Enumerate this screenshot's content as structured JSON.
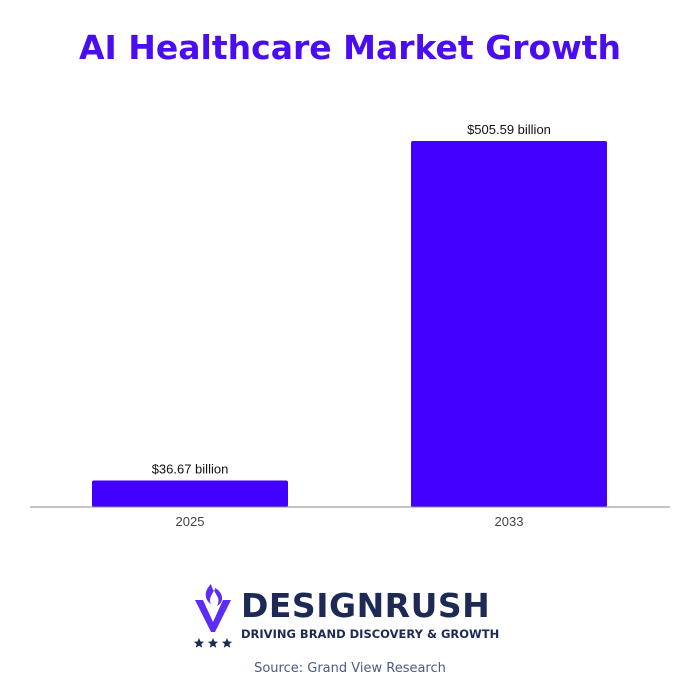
{
  "chart_data": {
    "type": "bar",
    "title": "AI Healthcare Market Growth",
    "categories": [
      "2025",
      "2033"
    ],
    "values": [
      36.67,
      505.59
    ],
    "data_labels": [
      "$36.67 billion",
      "$505.59 billion"
    ],
    "xlabel": "",
    "ylabel": "",
    "ylim": [
      0,
      550
    ],
    "grid": false,
    "legend": "none",
    "bar_color": "#4200ff"
  },
  "brand": {
    "name": "DESIGNRUSH",
    "tagline": "DRIVING BRAND DISCOVERY & GROWTH",
    "logo_icon": "designrush-torch-icon",
    "color": "#1c2a55",
    "accent": "#5b2df5"
  },
  "source": "Source: Grand View Research"
}
